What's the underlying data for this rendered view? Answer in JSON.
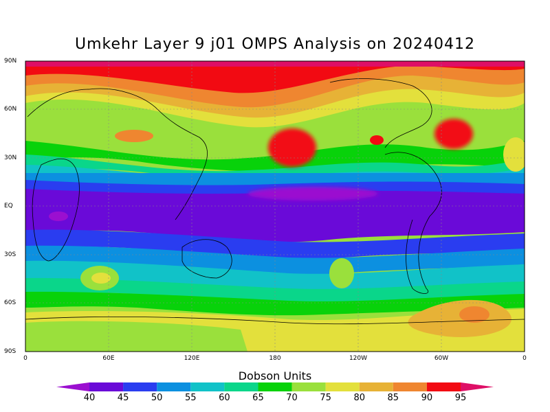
{
  "title": "Umkehr Layer 9 j01 OMPS Analysis on 20240412",
  "map": {
    "lat_labels": [
      "90N",
      "60N",
      "30N",
      "EQ",
      "30S",
      "60S",
      "90S"
    ],
    "lon_labels": [
      "0",
      "60E",
      "120E",
      "180",
      "120W",
      "60W",
      "0"
    ]
  },
  "colorbar": {
    "title": "Dobson Units",
    "levels": [
      40,
      45,
      50,
      55,
      60,
      65,
      70,
      75,
      80,
      85,
      90,
      95
    ],
    "colors": [
      "#9b0fd0",
      "#6a0ad8",
      "#2a3df0",
      "#0c90e0",
      "#11c2c8",
      "#0ad68a",
      "#08d20a",
      "#9ae03c",
      "#e3e03c",
      "#e7b236",
      "#ef8630",
      "#f20a12",
      "#de0f66"
    ]
  }
}
